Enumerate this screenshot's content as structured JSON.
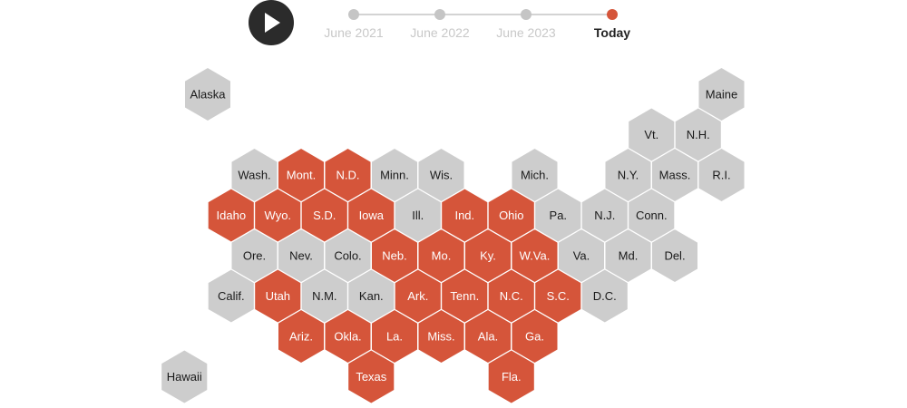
{
  "colors": {
    "highlight": "#d5553a",
    "neutral": "#cdcdcd",
    "highlight_text": "#ffffff",
    "neutral_text": "#1a1a1a",
    "play_button": "#2b2b2b"
  },
  "controls": {
    "play_icon": "play-icon"
  },
  "timeline": [
    {
      "label": "June 2021",
      "active": false
    },
    {
      "label": "June 2022",
      "active": false
    },
    {
      "label": "June 2023",
      "active": false
    },
    {
      "label": "Today",
      "active": true
    }
  ],
  "states": [
    {
      "name": "Alaska",
      "col": 0,
      "row": 0,
      "highlighted": false
    },
    {
      "name": "Maine",
      "col": 11,
      "row": 0,
      "highlighted": false
    },
    {
      "name": "Vt.",
      "col": 10,
      "row": 1,
      "highlighted": false
    },
    {
      "name": "N.H.",
      "col": 11,
      "row": 1,
      "highlighted": false
    },
    {
      "name": "Wash.",
      "col": 1,
      "row": 2,
      "highlighted": false
    },
    {
      "name": "Mont.",
      "col": 2,
      "row": 2,
      "highlighted": true
    },
    {
      "name": "N.D.",
      "col": 3,
      "row": 2,
      "highlighted": true
    },
    {
      "name": "Minn.",
      "col": 4,
      "row": 2,
      "highlighted": false
    },
    {
      "name": "Wis.",
      "col": 5,
      "row": 2,
      "highlighted": false
    },
    {
      "name": "Mich.",
      "col": 7,
      "row": 2,
      "highlighted": false
    },
    {
      "name": "N.Y.",
      "col": 9,
      "row": 2,
      "highlighted": false
    },
    {
      "name": "Mass.",
      "col": 10,
      "row": 2,
      "highlighted": false
    },
    {
      "name": "R.I.",
      "col": 11,
      "row": 2,
      "highlighted": false
    },
    {
      "name": "Idaho",
      "col": 1,
      "row": 3,
      "highlighted": true
    },
    {
      "name": "Wyo.",
      "col": 2,
      "row": 3,
      "highlighted": true
    },
    {
      "name": "S.D.",
      "col": 3,
      "row": 3,
      "highlighted": true
    },
    {
      "name": "Iowa",
      "col": 4,
      "row": 3,
      "highlighted": true
    },
    {
      "name": "Ill.",
      "col": 5,
      "row": 3,
      "highlighted": false
    },
    {
      "name": "Ind.",
      "col": 6,
      "row": 3,
      "highlighted": true
    },
    {
      "name": "Ohio",
      "col": 7,
      "row": 3,
      "highlighted": true
    },
    {
      "name": "Pa.",
      "col": 8,
      "row": 3,
      "highlighted": false
    },
    {
      "name": "N.J.",
      "col": 9,
      "row": 3,
      "highlighted": false
    },
    {
      "name": "Conn.",
      "col": 10,
      "row": 3,
      "highlighted": false
    },
    {
      "name": "Ore.",
      "col": 1,
      "row": 4,
      "highlighted": false
    },
    {
      "name": "Nev.",
      "col": 2,
      "row": 4,
      "highlighted": false
    },
    {
      "name": "Colo.",
      "col": 3,
      "row": 4,
      "highlighted": false
    },
    {
      "name": "Neb.",
      "col": 4,
      "row": 4,
      "highlighted": true
    },
    {
      "name": "Mo.",
      "col": 5,
      "row": 4,
      "highlighted": true
    },
    {
      "name": "Ky.",
      "col": 6,
      "row": 4,
      "highlighted": true
    },
    {
      "name": "W.Va.",
      "col": 7,
      "row": 4,
      "highlighted": true
    },
    {
      "name": "Va.",
      "col": 8,
      "row": 4,
      "highlighted": false
    },
    {
      "name": "Md.",
      "col": 9,
      "row": 4,
      "highlighted": false
    },
    {
      "name": "Del.",
      "col": 10,
      "row": 4,
      "highlighted": false
    },
    {
      "name": "Calif.",
      "col": 1,
      "row": 5,
      "highlighted": false
    },
    {
      "name": "Utah",
      "col": 2,
      "row": 5,
      "highlighted": true
    },
    {
      "name": "N.M.",
      "col": 3,
      "row": 5,
      "highlighted": false
    },
    {
      "name": "Kan.",
      "col": 4,
      "row": 5,
      "highlighted": false
    },
    {
      "name": "Ark.",
      "col": 5,
      "row": 5,
      "highlighted": true
    },
    {
      "name": "Tenn.",
      "col": 6,
      "row": 5,
      "highlighted": true
    },
    {
      "name": "N.C.",
      "col": 7,
      "row": 5,
      "highlighted": true
    },
    {
      "name": "S.C.",
      "col": 8,
      "row": 5,
      "highlighted": true
    },
    {
      "name": "D.C.",
      "col": 9,
      "row": 5,
      "highlighted": false
    },
    {
      "name": "Ariz.",
      "col": 2,
      "row": 6,
      "highlighted": true
    },
    {
      "name": "Okla.",
      "col": 3,
      "row": 6,
      "highlighted": true
    },
    {
      "name": "La.",
      "col": 4,
      "row": 6,
      "highlighted": true
    },
    {
      "name": "Miss.",
      "col": 5,
      "row": 6,
      "highlighted": true
    },
    {
      "name": "Ala.",
      "col": 6,
      "row": 6,
      "highlighted": true
    },
    {
      "name": "Ga.",
      "col": 7,
      "row": 6,
      "highlighted": true
    },
    {
      "name": "Hawaii",
      "col": 0,
      "row": 7,
      "highlighted": false
    },
    {
      "name": "Texas",
      "col": 4,
      "row": 7,
      "highlighted": true
    },
    {
      "name": "Fla.",
      "col": 7,
      "row": 7,
      "highlighted": true
    }
  ]
}
